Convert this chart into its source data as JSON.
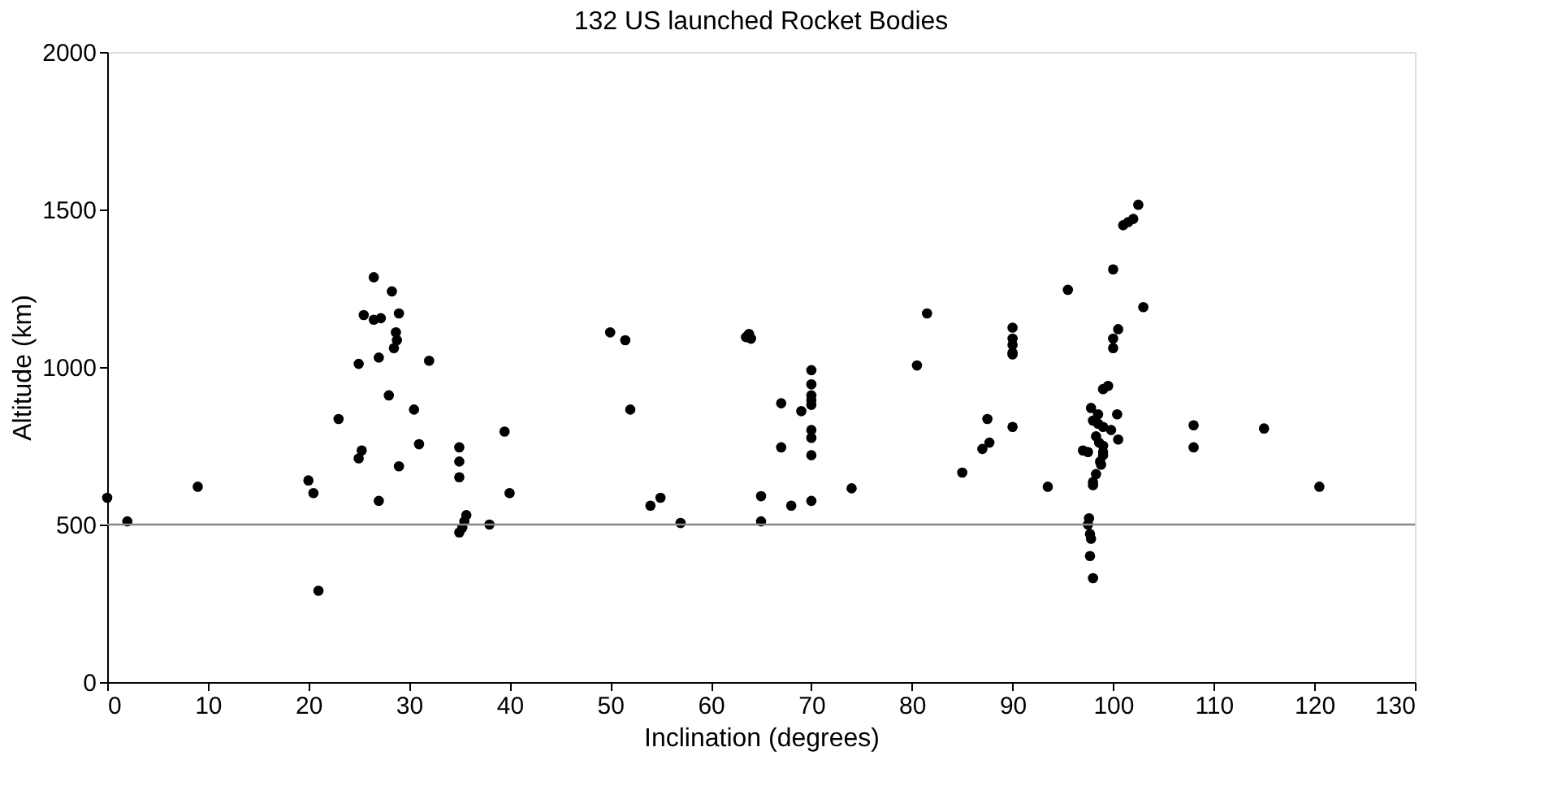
{
  "chart_data": {
    "type": "scatter",
    "title": "132 US launched Rocket Bodies",
    "xlabel": "Inclination (degrees)",
    "ylabel": "Altitude (km)",
    "xlim": [
      0,
      130
    ],
    "xticks": [
      0,
      10,
      20,
      30,
      40,
      50,
      60,
      70,
      80,
      90,
      100,
      110,
      120,
      130
    ],
    "ylim": [
      0,
      2000
    ],
    "yticks": [
      0,
      500,
      1000,
      1500,
      2000
    ],
    "grid": false,
    "legend": false,
    "marker": "circle",
    "ref_lines": [
      {
        "axis": "y",
        "value": 500,
        "color": "#888888"
      }
    ],
    "series": [
      {
        "color": "#000000",
        "x": [
          0,
          2,
          9,
          20,
          20.5,
          21,
          23,
          25,
          25,
          25.3,
          25.5,
          26.5,
          26.5,
          27,
          27,
          27.2,
          28,
          28.3,
          28.5,
          28.7,
          28.8,
          29,
          29,
          30.5,
          31,
          32,
          35,
          35,
          35,
          35,
          35.3,
          35.5,
          35.7,
          38,
          39.5,
          40,
          50,
          51.5,
          52,
          54,
          55,
          57,
          63.5,
          63.8,
          64,
          65,
          65,
          67,
          67,
          68,
          69,
          70,
          70,
          70,
          70,
          70,
          70,
          70,
          70,
          70,
          74,
          80.5,
          81.5,
          85,
          87,
          87.5,
          87.7,
          90,
          90,
          90,
          90,
          90,
          90,
          93.5,
          95.5,
          97,
          97.5,
          97.5,
          97.7,
          97.8,
          97.6,
          97.7,
          98,
          97.8,
          98,
          98,
          98,
          98.3,
          98.5,
          98.5,
          98.6,
          98.7,
          98.8,
          98.3,
          99,
          99,
          99,
          99,
          99,
          99.5,
          99.8,
          100,
          100,
          100,
          100.5,
          100.4,
          100.5,
          101,
          101.5,
          102,
          102.5,
          103,
          108,
          108,
          115,
          120.5
        ],
        "values": [
          585,
          510,
          620,
          640,
          600,
          290,
          835,
          1010,
          710,
          735,
          1165,
          1285,
          1150,
          1030,
          575,
          1155,
          910,
          1240,
          1060,
          1110,
          1085,
          1170,
          685,
          865,
          755,
          1020,
          745,
          700,
          650,
          475,
          490,
          510,
          530,
          500,
          795,
          600,
          1110,
          1085,
          865,
          560,
          585,
          505,
          1095,
          1105,
          1090,
          590,
          510,
          885,
          745,
          560,
          860,
          990,
          945,
          910,
          895,
          880,
          800,
          775,
          720,
          575,
          615,
          1005,
          1170,
          665,
          740,
          835,
          760,
          1125,
          1090,
          1070,
          1045,
          1040,
          810,
          620,
          1245,
          735,
          730,
          500,
          470,
          455,
          520,
          400,
          330,
          870,
          830,
          625,
          635,
          780,
          820,
          850,
          760,
          700,
          690,
          660,
          730,
          810,
          720,
          750,
          930,
          940,
          800,
          1310,
          1060,
          1090,
          1120,
          850,
          770,
          1450,
          1460,
          1470,
          1515,
          1190,
          815,
          745,
          805,
          620
        ]
      }
    ]
  }
}
